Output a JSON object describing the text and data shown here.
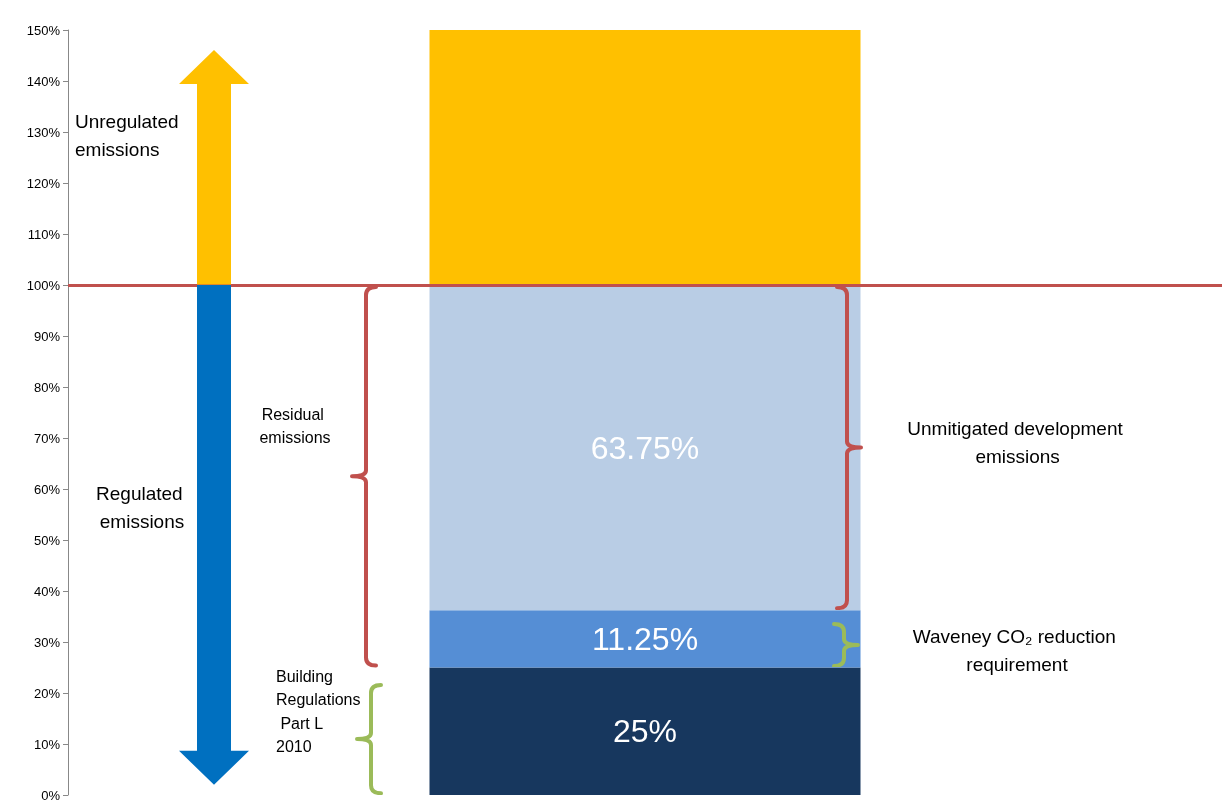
{
  "chart_data": {
    "type": "bar",
    "stacked": true,
    "categories": [
      null
    ],
    "series": [
      {
        "color": "#17375e",
        "values": [
          25
        ],
        "value_labels": [
          "25%"
        ]
      },
      {
        "color": "#558ed5",
        "values": [
          11.25
        ],
        "value_labels": [
          "11.25%"
        ]
      },
      {
        "color": "#b9cde5",
        "values": [
          63.75
        ],
        "value_labels": [
          "63.75%"
        ]
      },
      {
        "color": "#ffc000",
        "values": [
          50
        ],
        "value_labels": [
          null
        ]
      }
    ],
    "ylim": [
      0,
      150
    ],
    "yticks": [
      {
        "value": 0,
        "label": "0%"
      },
      {
        "value": 10,
        "label": "10%"
      },
      {
        "value": 20,
        "label": "20%"
      },
      {
        "value": 30,
        "label": "30%"
      },
      {
        "value": 40,
        "label": "40%"
      },
      {
        "value": 50,
        "label": "50%"
      },
      {
        "value": 60,
        "label": "60%"
      },
      {
        "value": 70,
        "label": "70%"
      },
      {
        "value": 80,
        "label": "80%"
      },
      {
        "value": 90,
        "label": "90%"
      },
      {
        "value": 100,
        "label": "100%"
      },
      {
        "value": 110,
        "label": "110%"
      },
      {
        "value": 120,
        "label": "120%"
      },
      {
        "value": 130,
        "label": "130%"
      },
      {
        "value": 140,
        "label": "140%"
      },
      {
        "value": 150,
        "label": "150%"
      }
    ],
    "ref_lines": [
      {
        "axis": "y",
        "value": 100,
        "color": "#c0504d"
      }
    ],
    "annotations": [
      "Unregulated emissions",
      "Regulated emissions",
      "Residual emissions",
      "Building Regulations Part L 2010",
      "Unmitigated development emissions",
      "Waveney CO₂ reduction requirement"
    ]
  }
}
